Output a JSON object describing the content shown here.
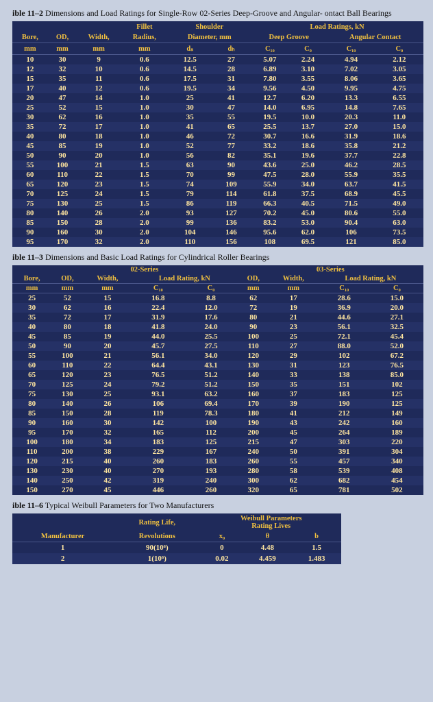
{
  "table11_2": {
    "caption_bold": "ible 11–2",
    "caption_rest": " Dimensions and Load Ratings for Single-Row 02-Series Deep-Groove and Angular- ontact Ball Bearings",
    "group_headers": {
      "fillet": "Fillet",
      "shoulder": "Shoulder",
      "load_ratings": "Load Ratings, kN",
      "deep_groove": "Deep Groove",
      "angular_contact": "Angular Contact"
    },
    "col_headers_top": [
      "Bore,",
      "OD,",
      "Width,",
      "Radius,",
      "Diameter, mm",
      "",
      "",
      "",
      "",
      ""
    ],
    "col_headers_bot": [
      "mm",
      "mm",
      "mm",
      "mm",
      "dₛ",
      "dₕ",
      "C₁₀",
      "C₀",
      "C₁₀",
      "C₀"
    ],
    "rows": [
      [
        "10",
        "30",
        "9",
        "0.6",
        "12.5",
        "27",
        "5.07",
        "2.24",
        "4.94",
        "2.12"
      ],
      [
        "12",
        "32",
        "10",
        "0.6",
        "14.5",
        "28",
        "6.89",
        "3.10",
        "7.02",
        "3.05"
      ],
      [
        "15",
        "35",
        "11",
        "0.6",
        "17.5",
        "31",
        "7.80",
        "3.55",
        "8.06",
        "3.65"
      ],
      [
        "17",
        "40",
        "12",
        "0.6",
        "19.5",
        "34",
        "9.56",
        "4.50",
        "9.95",
        "4.75"
      ],
      [
        "20",
        "47",
        "14",
        "1.0",
        "25",
        "41",
        "12.7",
        "6.20",
        "13.3",
        "6.55"
      ],
      [
        "25",
        "52",
        "15",
        "1.0",
        "30",
        "47",
        "14.0",
        "6.95",
        "14.8",
        "7.65"
      ],
      [
        "30",
        "62",
        "16",
        "1.0",
        "35",
        "55",
        "19.5",
        "10.0",
        "20.3",
        "11.0"
      ],
      [
        "35",
        "72",
        "17",
        "1.0",
        "41",
        "65",
        "25.5",
        "13.7",
        "27.0",
        "15.0"
      ],
      [
        "40",
        "80",
        "18",
        "1.0",
        "46",
        "72",
        "30.7",
        "16.6",
        "31.9",
        "18.6"
      ],
      [
        "45",
        "85",
        "19",
        "1.0",
        "52",
        "77",
        "33.2",
        "18.6",
        "35.8",
        "21.2"
      ],
      [
        "50",
        "90",
        "20",
        "1.0",
        "56",
        "82",
        "35.1",
        "19.6",
        "37.7",
        "22.8"
      ],
      [
        "55",
        "100",
        "21",
        "1.5",
        "63",
        "90",
        "43.6",
        "25.0",
        "46.2",
        "28.5"
      ],
      [
        "60",
        "110",
        "22",
        "1.5",
        "70",
        "99",
        "47.5",
        "28.0",
        "55.9",
        "35.5"
      ],
      [
        "65",
        "120",
        "23",
        "1.5",
        "74",
        "109",
        "55.9",
        "34.0",
        "63.7",
        "41.5"
      ],
      [
        "70",
        "125",
        "24",
        "1.5",
        "79",
        "114",
        "61.8",
        "37.5",
        "68.9",
        "45.5"
      ],
      [
        "75",
        "130",
        "25",
        "1.5",
        "86",
        "119",
        "66.3",
        "40.5",
        "71.5",
        "49.0"
      ],
      [
        "80",
        "140",
        "26",
        "2.0",
        "93",
        "127",
        "70.2",
        "45.0",
        "80.6",
        "55.0"
      ],
      [
        "85",
        "150",
        "28",
        "2.0",
        "99",
        "136",
        "83.2",
        "53.0",
        "90.4",
        "63.0"
      ],
      [
        "90",
        "160",
        "30",
        "2.0",
        "104",
        "146",
        "95.6",
        "62.0",
        "106",
        "73.5"
      ],
      [
        "95",
        "170",
        "32",
        "2.0",
        "110",
        "156",
        "108",
        "69.5",
        "121",
        "85.0"
      ]
    ]
  },
  "table11_3": {
    "caption_bold": "ible 11–3",
    "caption_rest": " Dimensions and Basic Load Ratings for Cylindrical Roller Bearings",
    "series02": "02-Series",
    "series03": "03-Series",
    "cols": [
      "Bore,",
      "OD,",
      "Width,",
      "Load Rating, kN",
      "",
      "OD,",
      "Width,",
      "Load Rating, kN",
      ""
    ],
    "cols2": [
      "mm",
      "mm",
      "mm",
      "C₁₀",
      "C₀",
      "mm",
      "mm",
      "C₁₀",
      "C₀"
    ],
    "rows": [
      [
        "25",
        "52",
        "15",
        "16.8",
        "8.8",
        "62",
        "17",
        "28.6",
        "15.0"
      ],
      [
        "30",
        "62",
        "16",
        "22.4",
        "12.0",
        "72",
        "19",
        "36.9",
        "20.0"
      ],
      [
        "35",
        "72",
        "17",
        "31.9",
        "17.6",
        "80",
        "21",
        "44.6",
        "27.1"
      ],
      [
        "40",
        "80",
        "18",
        "41.8",
        "24.0",
        "90",
        "23",
        "56.1",
        "32.5"
      ],
      [
        "45",
        "85",
        "19",
        "44.0",
        "25.5",
        "100",
        "25",
        "72.1",
        "45.4"
      ],
      [
        "50",
        "90",
        "20",
        "45.7",
        "27.5",
        "110",
        "27",
        "88.0",
        "52.0"
      ],
      [
        "55",
        "100",
        "21",
        "56.1",
        "34.0",
        "120",
        "29",
        "102",
        "67.2"
      ],
      [
        "60",
        "110",
        "22",
        "64.4",
        "43.1",
        "130",
        "31",
        "123",
        "76.5"
      ],
      [
        "65",
        "120",
        "23",
        "76.5",
        "51.2",
        "140",
        "33",
        "138",
        "85.0"
      ],
      [
        "70",
        "125",
        "24",
        "79.2",
        "51.2",
        "150",
        "35",
        "151",
        "102"
      ],
      [
        "75",
        "130",
        "25",
        "93.1",
        "63.2",
        "160",
        "37",
        "183",
        "125"
      ],
      [
        "80",
        "140",
        "26",
        "106",
        "69.4",
        "170",
        "39",
        "190",
        "125"
      ],
      [
        "85",
        "150",
        "28",
        "119",
        "78.3",
        "180",
        "41",
        "212",
        "149"
      ],
      [
        "90",
        "160",
        "30",
        "142",
        "100",
        "190",
        "43",
        "242",
        "160"
      ],
      [
        "95",
        "170",
        "32",
        "165",
        "112",
        "200",
        "45",
        "264",
        "189"
      ],
      [
        "100",
        "180",
        "34",
        "183",
        "125",
        "215",
        "47",
        "303",
        "220"
      ],
      [
        "110",
        "200",
        "38",
        "229",
        "167",
        "240",
        "50",
        "391",
        "304"
      ],
      [
        "120",
        "215",
        "40",
        "260",
        "183",
        "260",
        "55",
        "457",
        "340"
      ],
      [
        "130",
        "230",
        "40",
        "270",
        "193",
        "280",
        "58",
        "539",
        "408"
      ],
      [
        "140",
        "250",
        "42",
        "319",
        "240",
        "300",
        "62",
        "682",
        "454"
      ],
      [
        "150",
        "270",
        "45",
        "446",
        "260",
        "320",
        "65",
        "781",
        "502"
      ]
    ]
  },
  "table11_6": {
    "caption_bold": "ible 11–6",
    "caption_rest": " Typical Weibull Parameters for Two Manufacturers",
    "group1": "Rating Life,",
    "group1b": "Revolutions",
    "group2": "Weibull Parameters",
    "group2b": "Rating Lives",
    "cols": [
      "Manufacturer",
      "",
      "x₀",
      "θ",
      "b"
    ],
    "rows": [
      [
        "1",
        "90(10⁶)",
        "0",
        "4.48",
        "1.5"
      ],
      [
        "2",
        "1(10⁶)",
        "0.02",
        "4.459",
        "1.483"
      ]
    ]
  }
}
